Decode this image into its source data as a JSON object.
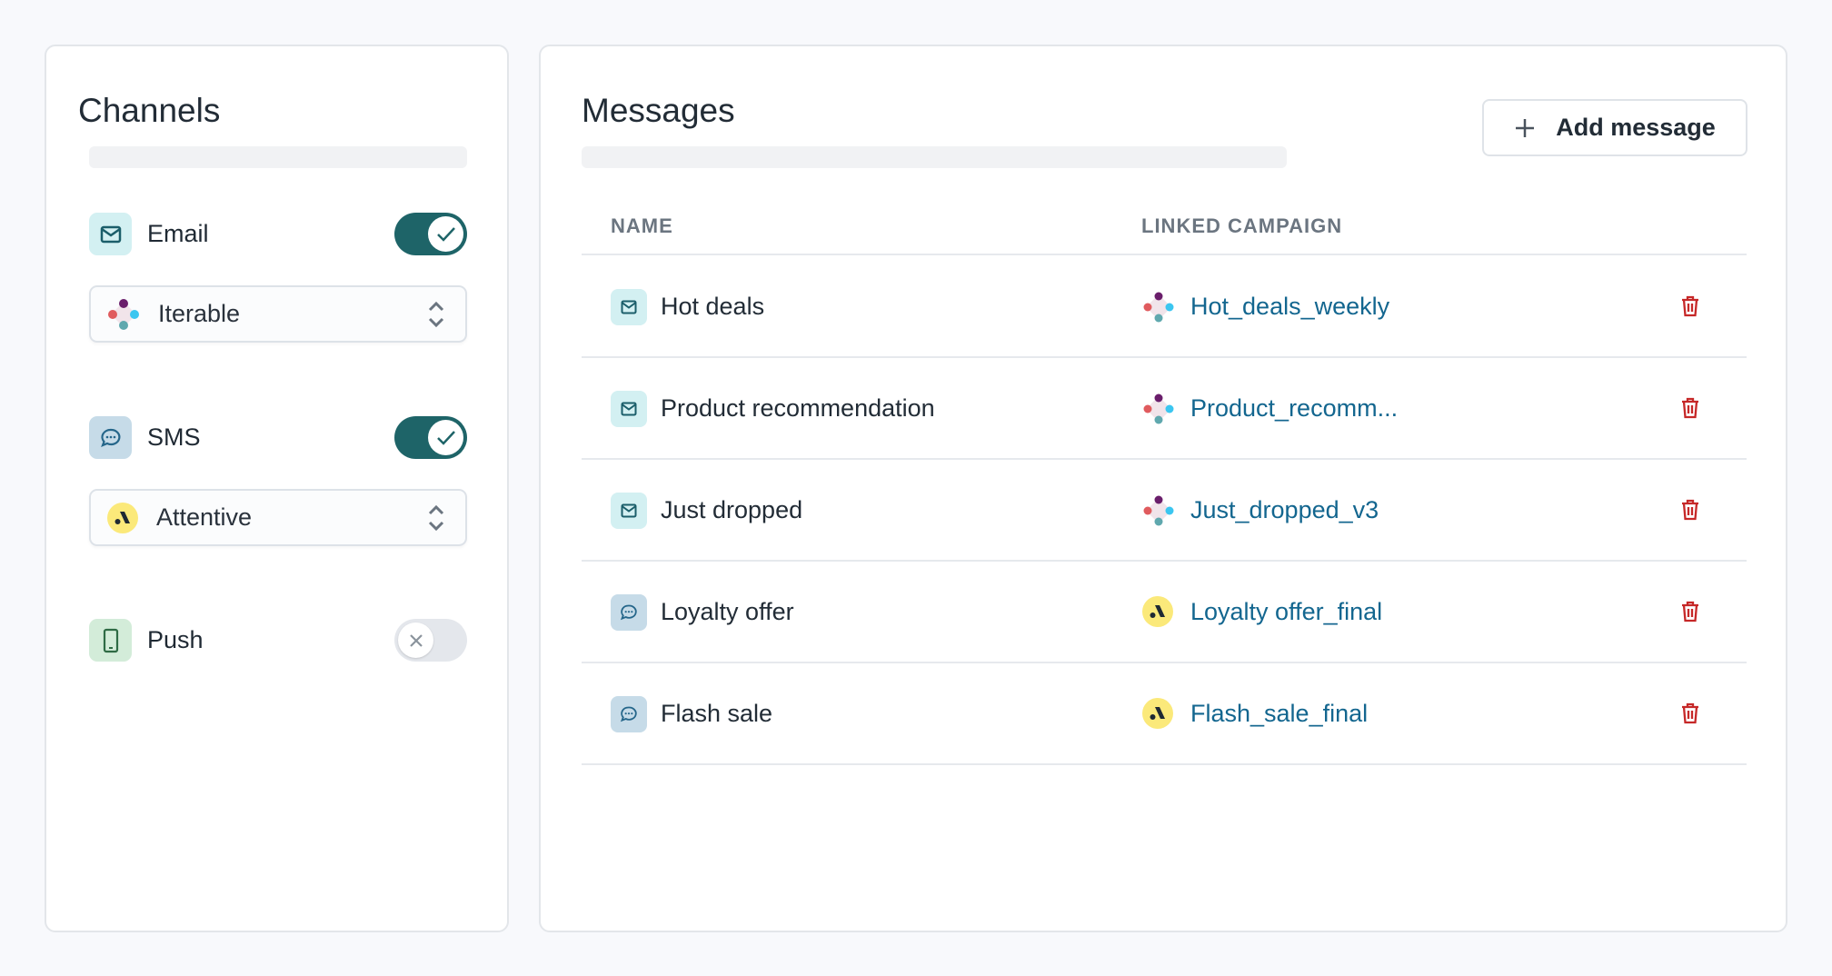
{
  "channels": {
    "title": "Channels",
    "items": [
      {
        "label": "Email",
        "enabled": true,
        "provider": "Iterable",
        "icon": "mail-icon"
      },
      {
        "label": "SMS",
        "enabled": true,
        "provider": "Attentive",
        "icon": "chat-icon"
      },
      {
        "label": "Push",
        "enabled": false,
        "icon": "phone-icon"
      }
    ]
  },
  "messages": {
    "title": "Messages",
    "add_label": "Add message",
    "columns": [
      "NAME",
      "LINKED CAMPAIGN"
    ],
    "rows": [
      {
        "name": "Hot deals",
        "type": "email",
        "campaign": "Hot_deals_weekly",
        "provider": "Iterable"
      },
      {
        "name": "Product recommendation",
        "type": "email",
        "campaign": "Product_recomm...",
        "provider": "Iterable"
      },
      {
        "name": "Just dropped",
        "type": "email",
        "campaign": "Just_dropped_v3",
        "provider": "Iterable"
      },
      {
        "name": "Loyalty offer",
        "type": "sms",
        "campaign": "Loyalty offer_final",
        "provider": "Attentive"
      },
      {
        "name": "Flash sale",
        "type": "sms",
        "campaign": "Flash_sale_final",
        "provider": "Attentive"
      }
    ]
  },
  "colors": {
    "toggle_on": "#1e6468",
    "link": "#13668f",
    "delete": "#c62828",
    "email_bg": "#d3f0f2",
    "sms_bg": "#c6dbe8",
    "push_bg": "#d3ecd9"
  }
}
